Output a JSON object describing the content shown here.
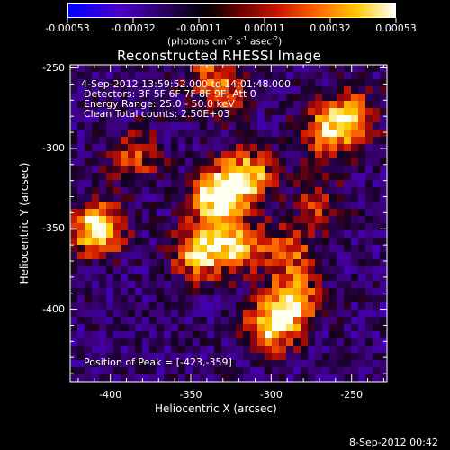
{
  "colorbar": {
    "ticks": [
      "-0.00053",
      "-0.00032",
      "-0.00011",
      "0.00011",
      "0.00032",
      "0.00053"
    ],
    "unit_label": "(photons cm",
    "unit_label_parts": [
      "(photons cm",
      "-2",
      " s",
      "-1",
      " asec",
      "-2",
      ")"
    ]
  },
  "chart_data": {
    "type": "heatmap",
    "title": "Reconstructed RHESSI Image",
    "xlabel": "Heliocentric X (arcsec)",
    "ylabel": "Heliocentric Y (arcsec)",
    "xlim": [
      -425,
      -228
    ],
    "ylim": [
      -445,
      -248
    ],
    "x_ticks": [
      "-400",
      "-350",
      "-300",
      "-250"
    ],
    "y_ticks": [
      "-250",
      "-300",
      "-350",
      "-400"
    ],
    "x_tick_values": [
      -400,
      -350,
      -300,
      -250
    ],
    "y_tick_values": [
      -250,
      -300,
      -350,
      -400
    ],
    "colorbar_range": [
      -0.00053,
      0.00053
    ],
    "colormap": [
      "#0000ff",
      "#5a00b4",
      "#000000",
      "#c80000",
      "#ff7800",
      "#ffff00",
      "#ffffff"
    ],
    "annotations": {
      "time": " 4-Sep-2012 13:59:52.000 to 14:01:48.000",
      "detectors": "Detectors: 3F 5F 6F 7F 8F 9F, Att 0",
      "energy": "Energy Range: 25.0 - 50.0 keV",
      "clean": "Clean     Total counts: 2.50E+03",
      "peak": "Position of Peak = [-423,-359]"
    },
    "bright_features": [
      {
        "x": -408,
        "y": -350,
        "weight": 1.0
      },
      {
        "x": -335,
        "y": -330,
        "weight": 0.95
      },
      {
        "x": -315,
        "y": -318,
        "weight": 0.85
      },
      {
        "x": -345,
        "y": -365,
        "weight": 0.8
      },
      {
        "x": -322,
        "y": -360,
        "weight": 0.7
      },
      {
        "x": -300,
        "y": -410,
        "weight": 0.85
      },
      {
        "x": -285,
        "y": -395,
        "weight": 0.7
      },
      {
        "x": -265,
        "y": -290,
        "weight": 0.65
      },
      {
        "x": -250,
        "y": -280,
        "weight": 0.6
      },
      {
        "x": -385,
        "y": -305,
        "weight": 0.5
      },
      {
        "x": -330,
        "y": -265,
        "weight": 0.45
      },
      {
        "x": -290,
        "y": -365,
        "weight": 0.55
      },
      {
        "x": -340,
        "y": -250,
        "weight": 0.35
      },
      {
        "x": -270,
        "y": -335,
        "weight": 0.4
      }
    ]
  },
  "footer": {
    "date": "8-Sep-2012 00:42"
  }
}
